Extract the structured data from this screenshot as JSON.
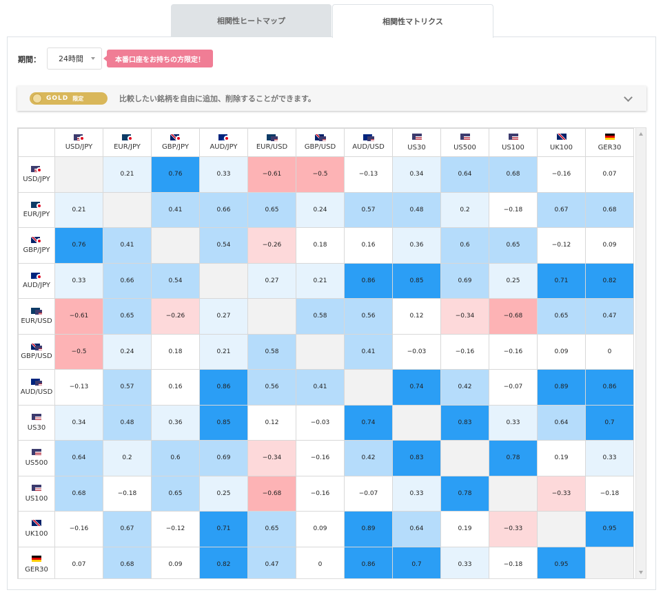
{
  "tabs": [
    {
      "label": "相関性ヒートマップ",
      "active": false
    },
    {
      "label": "相関性マトリクス",
      "active": true
    }
  ],
  "period": {
    "label": "期間：",
    "selected": "24時間"
  },
  "limited_badge": "本番口座をお持ちの方限定！",
  "gold_bar": {
    "pill": "GOLD",
    "pill_sub": "限定",
    "text": "比較したい銘柄を自由に追加、削除することができます。"
  },
  "colors": {
    "strong_positive": "#2b9ef5",
    "positive": "#b5dcfb",
    "weak_positive": "#e6f3fd",
    "neutral": "#ffffff",
    "weak_negative": "#fdd9da",
    "negative": "#fdb3b5",
    "diagonal": "#f2f2f2"
  },
  "matrix": {
    "symbols": [
      {
        "name": "USD/JPY",
        "flags": [
          "us",
          "jp"
        ]
      },
      {
        "name": "EUR/JPY",
        "flags": [
          "eu",
          "jp"
        ]
      },
      {
        "name": "GBP/JPY",
        "flags": [
          "uk",
          "jp"
        ]
      },
      {
        "name": "AUD/JPY",
        "flags": [
          "au",
          "jp"
        ]
      },
      {
        "name": "EUR/USD",
        "flags": [
          "eu",
          "us"
        ]
      },
      {
        "name": "GBP/USD",
        "flags": [
          "uk",
          "us"
        ]
      },
      {
        "name": "AUD/USD",
        "flags": [
          "au",
          "us"
        ]
      },
      {
        "name": "US30",
        "flags": [
          "us"
        ]
      },
      {
        "name": "US500",
        "flags": [
          "us"
        ]
      },
      {
        "name": "US100",
        "flags": [
          "us"
        ]
      },
      {
        "name": "UK100",
        "flags": [
          "uk"
        ]
      },
      {
        "name": "GER30",
        "flags": [
          "de"
        ]
      }
    ],
    "values": [
      [
        "",
        "0.21",
        "0.76",
        "0.33",
        "−0.61",
        "−0.5",
        "−0.13",
        "0.34",
        "0.64",
        "0.68",
        "−0.16",
        "0.07"
      ],
      [
        "0.21",
        "",
        "0.41",
        "0.66",
        "0.65",
        "0.24",
        "0.57",
        "0.48",
        "0.2",
        "−0.18",
        "0.67",
        "0.68"
      ],
      [
        "0.76",
        "0.41",
        "",
        "0.54",
        "−0.26",
        "0.18",
        "0.16",
        "0.36",
        "0.6",
        "0.65",
        "−0.12",
        "0.09"
      ],
      [
        "0.33",
        "0.66",
        "0.54",
        "",
        "0.27",
        "0.21",
        "0.86",
        "0.85",
        "0.69",
        "0.25",
        "0.71",
        "0.82"
      ],
      [
        "−0.61",
        "0.65",
        "−0.26",
        "0.27",
        "",
        "0.58",
        "0.56",
        "0.12",
        "−0.34",
        "−0.68",
        "0.65",
        "0.47"
      ],
      [
        "−0.5",
        "0.24",
        "0.18",
        "0.21",
        "0.58",
        "",
        "0.41",
        "−0.03",
        "−0.16",
        "−0.16",
        "0.09",
        "0"
      ],
      [
        "−0.13",
        "0.57",
        "0.16",
        "0.86",
        "0.56",
        "0.41",
        "",
        "0.74",
        "0.42",
        "−0.07",
        "0.89",
        "0.86"
      ],
      [
        "0.34",
        "0.48",
        "0.36",
        "0.85",
        "0.12",
        "−0.03",
        "0.74",
        "",
        "0.83",
        "0.33",
        "0.64",
        "0.7"
      ],
      [
        "0.64",
        "0.2",
        "0.6",
        "0.69",
        "−0.34",
        "−0.16",
        "0.42",
        "0.83",
        "",
        "0.78",
        "0.19",
        "0.33"
      ],
      [
        "0.68",
        "−0.18",
        "0.65",
        "0.25",
        "−0.68",
        "−0.16",
        "−0.07",
        "0.33",
        "0.78",
        "",
        "−0.33",
        "−0.18"
      ],
      [
        "−0.16",
        "0.67",
        "−0.12",
        "0.71",
        "0.65",
        "0.09",
        "0.89",
        "0.64",
        "0.19",
        "−0.33",
        "",
        "0.95"
      ],
      [
        "0.07",
        "0.68",
        "0.09",
        "0.82",
        "0.47",
        "0",
        "0.86",
        "0.7",
        "0.33",
        "−0.18",
        "0.95",
        ""
      ]
    ]
  }
}
